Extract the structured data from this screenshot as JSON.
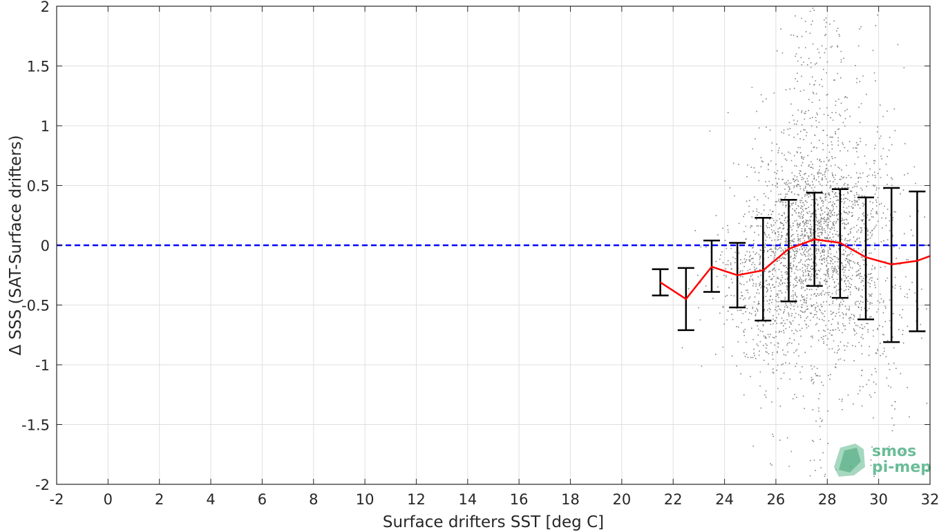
{
  "chart_data": {
    "type": "scatter",
    "title": "",
    "xlabel": "Surface drifters SST [deg C]",
    "ylabel": "Δ SSS (SAT-Surface drifters)",
    "xlim": [
      -2,
      32
    ],
    "ylim": [
      -2,
      2
    ],
    "x_ticks": [
      -2,
      0,
      2,
      4,
      6,
      8,
      10,
      12,
      14,
      16,
      18,
      20,
      22,
      24,
      26,
      28,
      30,
      32
    ],
    "y_ticks": [
      -2,
      -1.5,
      -1,
      -0.5,
      0,
      0.5,
      1,
      1.5,
      2
    ],
    "x_tick_labels": [
      "-2",
      "0",
      "2",
      "4",
      "6",
      "8",
      "10",
      "12",
      "14",
      "16",
      "18",
      "20",
      "22",
      "24",
      "26",
      "28",
      "30",
      "32"
    ],
    "y_tick_labels": [
      "-2",
      "-1.5",
      "-1",
      "-0.5",
      "0",
      "0.5",
      "1",
      "1.5",
      "2"
    ],
    "grid": true,
    "reference_line": {
      "y": 0,
      "color": "#0000ff",
      "style": "dashed"
    },
    "scatter_color": "#808080",
    "mean_line_color": "#ff0000",
    "errorbar_color": "#000000",
    "binned_stats": {
      "x": [
        21.5,
        22.5,
        23.5,
        24.5,
        25.5,
        26.5,
        27.5,
        28.5,
        29.5,
        30.5,
        31.5,
        32.0
      ],
      "mean": [
        -0.31,
        -0.45,
        -0.18,
        -0.25,
        -0.21,
        -0.03,
        0.05,
        0.02,
        -0.1,
        -0.16,
        -0.13,
        -0.09
      ],
      "lower": [
        -0.42,
        -0.71,
        -0.39,
        -0.52,
        -0.63,
        -0.47,
        -0.34,
        -0.44,
        -0.62,
        -0.81,
        -0.72,
        null
      ],
      "upper": [
        -0.2,
        -0.19,
        0.04,
        0.02,
        0.23,
        0.38,
        0.44,
        0.47,
        0.4,
        0.48,
        0.45,
        null
      ]
    },
    "scatter_density": {
      "x_range": [
        21.8,
        31.9
      ],
      "center_sst": 27.5,
      "note_bins": "grey cloud of match-up points; densest near SST 27-28.5"
    },
    "legend": null
  },
  "logo": {
    "line1": "smos",
    "line2": "pi-mep",
    "color": "#3aa876"
  }
}
